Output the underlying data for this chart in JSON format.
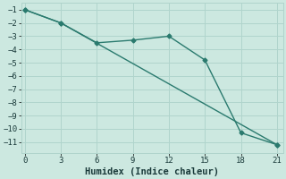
{
  "xlabel": "Humidex (Indice chaleur)",
  "background_color": "#cce8e0",
  "plot_bg_color": "#cce8e0",
  "grid_color": "#b0d4cc",
  "line_color": "#2a7a6e",
  "line1_x": [
    0,
    3,
    21
  ],
  "line1_y": [
    -1.0,
    -2.0,
    -11.2
  ],
  "line2_x": [
    0,
    3,
    6,
    9,
    12,
    15,
    18,
    21
  ],
  "line2_y": [
    -1.0,
    -2.0,
    -3.5,
    -3.3,
    -3.0,
    -4.8,
    -10.3,
    -11.2
  ],
  "xlim": [
    -0.3,
    21.5
  ],
  "ylim": [
    -11.8,
    -0.5
  ],
  "xticks": [
    0,
    3,
    6,
    9,
    12,
    15,
    18,
    21
  ],
  "yticks": [
    -1,
    -2,
    -3,
    -4,
    -5,
    -6,
    -7,
    -8,
    -9,
    -10,
    -11
  ],
  "marker": "D",
  "markersize": 2.5,
  "linewidth": 1.0,
  "xlabel_fontsize": 7.5,
  "tick_fontsize": 6.5
}
